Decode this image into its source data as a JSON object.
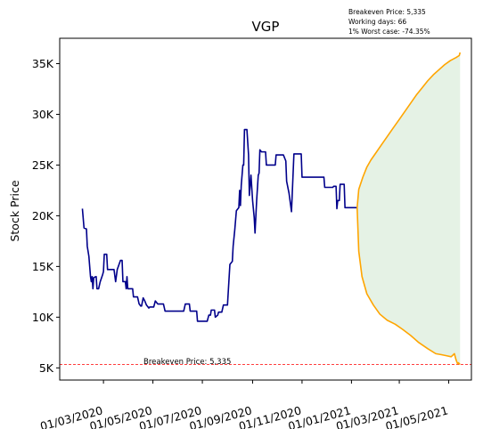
{
  "chart_data": {
    "type": "line",
    "title": "VGP",
    "ylabel": "Stock Price",
    "xlabel": "",
    "ylim": [
      3800,
      37500
    ],
    "y_ticks": [
      5000,
      10000,
      15000,
      20000,
      25000,
      30000,
      35000
    ],
    "y_tick_labels": [
      "5K",
      "10K",
      "15K",
      "20K",
      "25K",
      "30K",
      "35K"
    ],
    "x_range": [
      "2020-01-07",
      "2021-05-29"
    ],
    "x_ticks": [
      "2020-03-01",
      "2020-05-01",
      "2020-07-01",
      "2020-09-01",
      "2020-11-01",
      "2021-01-01",
      "2021-03-01",
      "2021-05-01"
    ],
    "x_tick_labels": [
      "01/03/2020",
      "01/05/2020",
      "01/07/2020",
      "01/09/2020",
      "01/11/2020",
      "01/01/2021",
      "01/03/2021",
      "01/05/2021"
    ],
    "colors": {
      "history": "#00008b",
      "forecast": "#ffa500",
      "band": "#e5f2e5",
      "breakeven": "#ff0000"
    },
    "series": [
      {
        "key": "history",
        "points": [
          [
            "2020-02-04",
            20700
          ],
          [
            "2020-02-06",
            18800
          ],
          [
            "2020-02-09",
            18700
          ],
          [
            "2020-02-10",
            17000
          ],
          [
            "2020-02-12",
            16000
          ],
          [
            "2020-02-14",
            14000
          ],
          [
            "2020-02-15",
            13500
          ],
          [
            "2020-02-16",
            14000
          ],
          [
            "2020-02-17",
            12800
          ],
          [
            "2020-02-18",
            13900
          ],
          [
            "2020-02-21",
            14000
          ],
          [
            "2020-02-22",
            12800
          ],
          [
            "2020-02-24",
            12800
          ],
          [
            "2020-02-26",
            13500
          ],
          [
            "2020-02-29",
            14200
          ],
          [
            "2020-03-01",
            14500
          ],
          [
            "2020-03-02",
            16200
          ],
          [
            "2020-03-05",
            16200
          ],
          [
            "2020-03-06",
            14700
          ],
          [
            "2020-03-14",
            14700
          ],
          [
            "2020-03-16",
            13500
          ],
          [
            "2020-03-18",
            14700
          ],
          [
            "2020-03-22",
            15600
          ],
          [
            "2020-03-24",
            15600
          ],
          [
            "2020-03-25",
            13500
          ],
          [
            "2020-03-28",
            13500
          ],
          [
            "2020-03-29",
            12800
          ],
          [
            "2020-03-30",
            14000
          ],
          [
            "2020-03-31",
            12800
          ],
          [
            "2020-04-06",
            12800
          ],
          [
            "2020-04-07",
            12000
          ],
          [
            "2020-04-12",
            12000
          ],
          [
            "2020-04-14",
            11300
          ],
          [
            "2020-04-16",
            11100
          ],
          [
            "2020-04-17",
            11100
          ],
          [
            "2020-04-19",
            11900
          ],
          [
            "2020-04-21",
            11600
          ],
          [
            "2020-04-23",
            11200
          ],
          [
            "2020-04-26",
            10900
          ],
          [
            "2020-04-27",
            11000
          ],
          [
            "2020-05-02",
            11000
          ],
          [
            "2020-05-04",
            11600
          ],
          [
            "2020-05-07",
            11300
          ],
          [
            "2020-05-14",
            11300
          ],
          [
            "2020-05-16",
            10600
          ],
          [
            "2020-06-08",
            10600
          ],
          [
            "2020-06-10",
            11300
          ],
          [
            "2020-06-15",
            11300
          ],
          [
            "2020-06-16",
            10600
          ],
          [
            "2020-06-24",
            10600
          ],
          [
            "2020-06-25",
            9600
          ],
          [
            "2020-07-07",
            9600
          ],
          [
            "2020-07-09",
            10200
          ],
          [
            "2020-07-11",
            10200
          ],
          [
            "2020-07-12",
            10700
          ],
          [
            "2020-07-16",
            10700
          ],
          [
            "2020-07-17",
            10000
          ],
          [
            "2020-07-20",
            10200
          ],
          [
            "2020-07-21",
            10500
          ],
          [
            "2020-07-25",
            10500
          ],
          [
            "2020-07-27",
            11200
          ],
          [
            "2020-08-01",
            11200
          ],
          [
            "2020-08-04",
            15200
          ],
          [
            "2020-08-07",
            15500
          ],
          [
            "2020-08-08",
            17000
          ],
          [
            "2020-08-10",
            18600
          ],
          [
            "2020-08-12",
            20500
          ],
          [
            "2020-08-15",
            20800
          ],
          [
            "2020-08-16",
            22500
          ],
          [
            "2020-08-17",
            21000
          ],
          [
            "2020-08-18",
            23000
          ],
          [
            "2020-08-20",
            25000
          ],
          [
            "2020-08-21",
            25000
          ],
          [
            "2020-08-22",
            28500
          ],
          [
            "2020-08-25",
            28500
          ],
          [
            "2020-08-27",
            26000
          ],
          [
            "2020-08-28",
            22000
          ],
          [
            "2020-08-30",
            24000
          ],
          [
            "2020-09-01",
            21500
          ],
          [
            "2020-09-03",
            19800
          ],
          [
            "2020-09-04",
            18300
          ],
          [
            "2020-09-06",
            21500
          ],
          [
            "2020-09-08",
            24000
          ],
          [
            "2020-09-09",
            24200
          ],
          [
            "2020-09-10",
            26500
          ],
          [
            "2020-09-12",
            26300
          ],
          [
            "2020-09-17",
            26300
          ],
          [
            "2020-09-18",
            25000
          ],
          [
            "2020-09-29",
            25000
          ],
          [
            "2020-09-30",
            26000
          ],
          [
            "2020-10-09",
            26000
          ],
          [
            "2020-10-12",
            25400
          ],
          [
            "2020-10-13",
            23400
          ],
          [
            "2020-10-16",
            22200
          ],
          [
            "2020-10-19",
            20400
          ],
          [
            "2020-10-20",
            22300
          ],
          [
            "2020-10-22",
            26100
          ],
          [
            "2020-10-31",
            26100
          ],
          [
            "2020-11-01",
            23800
          ],
          [
            "2020-11-28",
            23800
          ],
          [
            "2020-11-29",
            22800
          ],
          [
            "2020-12-09",
            22800
          ],
          [
            "2020-12-10",
            22900
          ],
          [
            "2020-12-13",
            22900
          ],
          [
            "2020-12-14",
            20700
          ],
          [
            "2020-12-15",
            21500
          ],
          [
            "2020-12-17",
            21500
          ],
          [
            "2020-12-18",
            23100
          ],
          [
            "2020-12-23",
            23100
          ],
          [
            "2020-12-24",
            20800
          ],
          [
            "2021-01-08",
            20800
          ]
        ]
      },
      {
        "key": "forecast_upper",
        "points": [
          [
            "2021-01-08",
            20800
          ],
          [
            "2021-01-10",
            22600
          ],
          [
            "2021-01-15",
            23800
          ],
          [
            "2021-01-20",
            24800
          ],
          [
            "2021-01-25",
            25500
          ],
          [
            "2021-02-01",
            26300
          ],
          [
            "2021-02-07",
            27000
          ],
          [
            "2021-02-14",
            27800
          ],
          [
            "2021-02-21",
            28600
          ],
          [
            "2021-03-01",
            29500
          ],
          [
            "2021-03-08",
            30300
          ],
          [
            "2021-03-15",
            31100
          ],
          [
            "2021-03-22",
            31900
          ],
          [
            "2021-03-29",
            32600
          ],
          [
            "2021-04-05",
            33300
          ],
          [
            "2021-04-12",
            33900
          ],
          [
            "2021-04-19",
            34400
          ],
          [
            "2021-04-26",
            34900
          ],
          [
            "2021-05-03",
            35300
          ],
          [
            "2021-05-10",
            35600
          ],
          [
            "2021-05-14",
            35800
          ],
          [
            "2021-05-15",
            36100
          ]
        ]
      },
      {
        "key": "forecast_lower",
        "points": [
          [
            "2021-01-08",
            20800
          ],
          [
            "2021-01-10",
            16500
          ],
          [
            "2021-01-14",
            14000
          ],
          [
            "2021-01-20",
            12300
          ],
          [
            "2021-01-28",
            11200
          ],
          [
            "2021-02-05",
            10300
          ],
          [
            "2021-02-14",
            9700
          ],
          [
            "2021-02-24",
            9300
          ],
          [
            "2021-03-05",
            8800
          ],
          [
            "2021-03-15",
            8200
          ],
          [
            "2021-03-25",
            7500
          ],
          [
            "2021-04-05",
            6900
          ],
          [
            "2021-04-15",
            6400
          ],
          [
            "2021-04-22",
            6300
          ],
          [
            "2021-04-28",
            6200
          ],
          [
            "2021-05-04",
            6100
          ],
          [
            "2021-05-08",
            6400
          ],
          [
            "2021-05-10",
            5800
          ],
          [
            "2021-05-12",
            5400
          ],
          [
            "2021-05-13",
            5500
          ],
          [
            "2021-05-15",
            5335
          ]
        ]
      }
    ],
    "breakeven": 5335,
    "breakeven_label": "Breakeven Price: 5,335",
    "annotations": [
      "Breakeven Price: 5,335",
      "Working days: 66",
      "1% Worst case: -74.35%"
    ]
  }
}
